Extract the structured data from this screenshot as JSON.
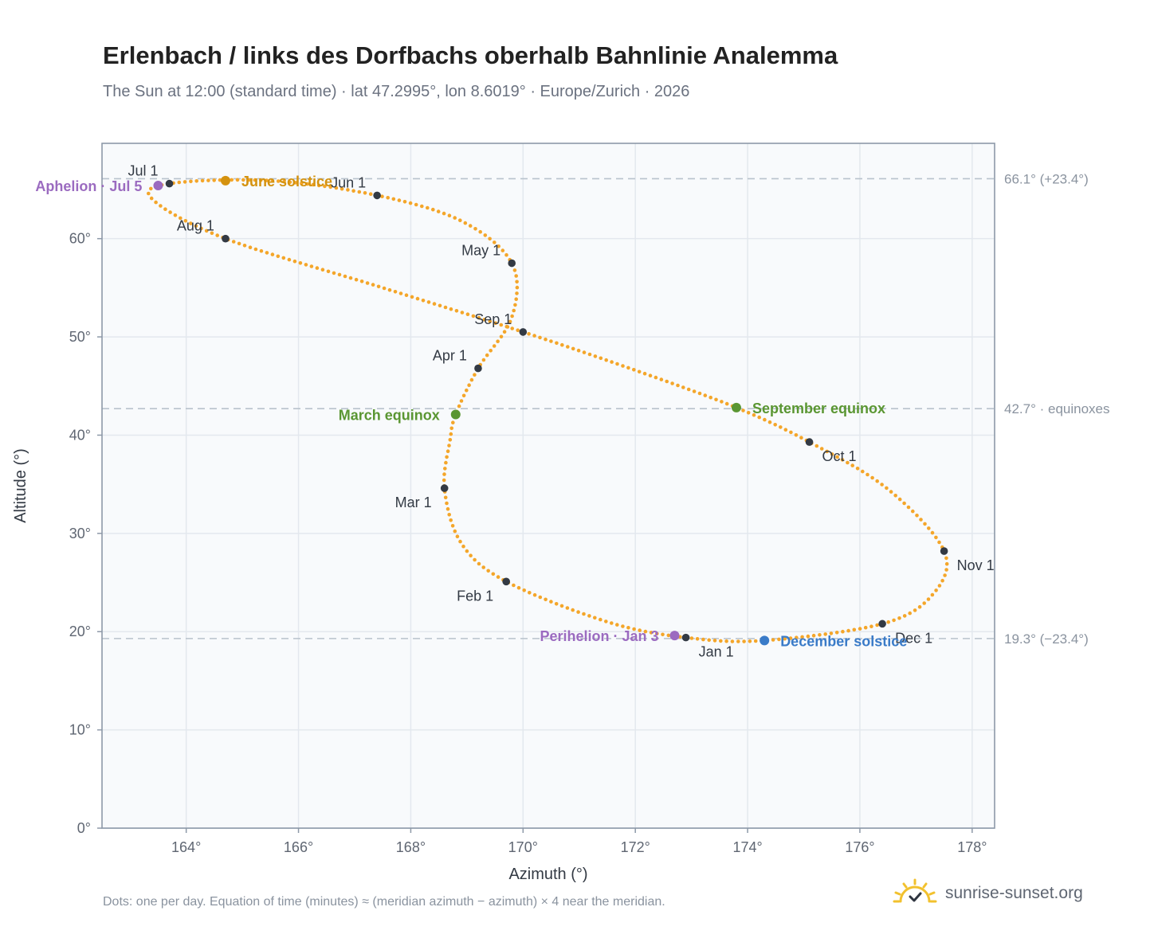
{
  "header": {
    "title": "Erlenbach / links des Dorfbachs oberhalb Bahnlinie Analemma",
    "subtitle": "The Sun at 12:00 (standard time) · lat 47.2995°, lon 8.6019° · Europe/Zurich · 2026"
  },
  "footer": {
    "note": "Dots: one per day. Equation of time (minutes) ≈ (meridian azimuth − azimuth) × 4 near the meridian.",
    "brand": "sunrise-sunset.org"
  },
  "colors": {
    "curve": "#f4a62a",
    "month_marker": "#333a44",
    "solstice_june": "#d4920f",
    "solstice_december": "#3a7bc8",
    "equinox": "#5a9632",
    "apsis": "#9b6bc0",
    "reference_line": "#b8c2cc",
    "plot_background": "#f8fafc",
    "grid": "#e3e8ee",
    "axis_frame": "#8d99a8"
  },
  "chart_data": {
    "type": "scatter",
    "xlabel": "Azimuth (°)",
    "ylabel": "Altitude (°)",
    "xlim": [
      162.5,
      178.4
    ],
    "ylim": [
      0,
      69.7
    ],
    "x_ticks": [
      164,
      166,
      168,
      170,
      172,
      174,
      176,
      178
    ],
    "x_tick_labels": [
      "164°",
      "166°",
      "168°",
      "170°",
      "172°",
      "174°",
      "176°",
      "178°"
    ],
    "y_ticks": [
      0,
      10,
      20,
      30,
      40,
      50,
      60
    ],
    "y_tick_labels": [
      "0°",
      "10°",
      "20°",
      "30°",
      "40°",
      "50°",
      "60°"
    ],
    "grid": true,
    "reference_lines": [
      {
        "y": 66.1,
        "label": "66.1° (+23.4°)"
      },
      {
        "y": 42.7,
        "label": "42.7° · equinoxes"
      },
      {
        "y": 19.3,
        "label": "19.3° (−23.4°)"
      }
    ],
    "path_anchors": [
      {
        "x": 172.9,
        "y": 19.4
      },
      {
        "x": 171.5,
        "y": 21.0
      },
      {
        "x": 169.7,
        "y": 25.1
      },
      {
        "x": 168.9,
        "y": 29.0
      },
      {
        "x": 168.6,
        "y": 34.6
      },
      {
        "x": 168.7,
        "y": 39.5
      },
      {
        "x": 168.8,
        "y": 42.1
      },
      {
        "x": 169.2,
        "y": 46.8
      },
      {
        "x": 169.8,
        "y": 52.0
      },
      {
        "x": 169.8,
        "y": 57.5
      },
      {
        "x": 168.9,
        "y": 61.8
      },
      {
        "x": 167.4,
        "y": 64.4
      },
      {
        "x": 165.5,
        "y": 65.9
      },
      {
        "x": 163.7,
        "y": 65.6
      },
      {
        "x": 163.4,
        "y": 64.0
      },
      {
        "x": 164.7,
        "y": 60.0
      },
      {
        "x": 167.5,
        "y": 55.0
      },
      {
        "x": 170.0,
        "y": 50.5
      },
      {
        "x": 172.0,
        "y": 46.6
      },
      {
        "x": 173.8,
        "y": 42.8
      },
      {
        "x": 175.1,
        "y": 39.3
      },
      {
        "x": 176.5,
        "y": 34.5
      },
      {
        "x": 177.5,
        "y": 28.2
      },
      {
        "x": 177.3,
        "y": 23.8
      },
      {
        "x": 176.4,
        "y": 20.8
      },
      {
        "x": 174.3,
        "y": 19.1
      },
      {
        "x": 172.9,
        "y": 19.4
      }
    ],
    "month_markers": [
      {
        "label": "Jan 1",
        "x": 172.9,
        "y": 19.4,
        "label_pos": "below-right"
      },
      {
        "label": "Feb 1",
        "x": 169.7,
        "y": 25.1,
        "label_pos": "below-left"
      },
      {
        "label": "Mar 1",
        "x": 168.6,
        "y": 34.6,
        "label_pos": "below-left"
      },
      {
        "label": "Apr 1",
        "x": 169.2,
        "y": 46.8,
        "label_pos": "above-left"
      },
      {
        "label": "May 1",
        "x": 169.8,
        "y": 57.5,
        "label_pos": "above-left"
      },
      {
        "label": "Jun 1",
        "x": 167.4,
        "y": 64.4,
        "label_pos": "above-left"
      },
      {
        "label": "Jul 1",
        "x": 163.7,
        "y": 65.6,
        "label_pos": "above-left"
      },
      {
        "label": "Aug 1",
        "x": 164.7,
        "y": 60.0,
        "label_pos": "above-left"
      },
      {
        "label": "Sep 1",
        "x": 170.0,
        "y": 50.5,
        "label_pos": "above-left"
      },
      {
        "label": "Oct 1",
        "x": 175.1,
        "y": 39.3,
        "label_pos": "below-right"
      },
      {
        "label": "Nov 1",
        "x": 177.5,
        "y": 28.2,
        "label_pos": "below-right"
      },
      {
        "label": "Dec 1",
        "x": 176.4,
        "y": 20.8,
        "label_pos": "below-right"
      }
    ],
    "special_points": [
      {
        "label": "June solstice",
        "x": 164.7,
        "y": 65.9,
        "color_key": "solstice_june",
        "label_side": "right"
      },
      {
        "label": "December solstice",
        "x": 174.3,
        "y": 19.1,
        "color_key": "solstice_december",
        "label_side": "right"
      },
      {
        "label": "March equinox",
        "x": 168.8,
        "y": 42.1,
        "color_key": "equinox",
        "label_side": "left"
      },
      {
        "label": "September equinox",
        "x": 173.8,
        "y": 42.8,
        "color_key": "equinox",
        "label_side": "right"
      },
      {
        "label": "Aphelion · Jul 5",
        "x": 163.5,
        "y": 65.4,
        "color_key": "apsis",
        "label_side": "left"
      },
      {
        "label": "Perihelion · Jan 3",
        "x": 172.7,
        "y": 19.6,
        "color_key": "apsis",
        "label_side": "left"
      }
    ]
  }
}
